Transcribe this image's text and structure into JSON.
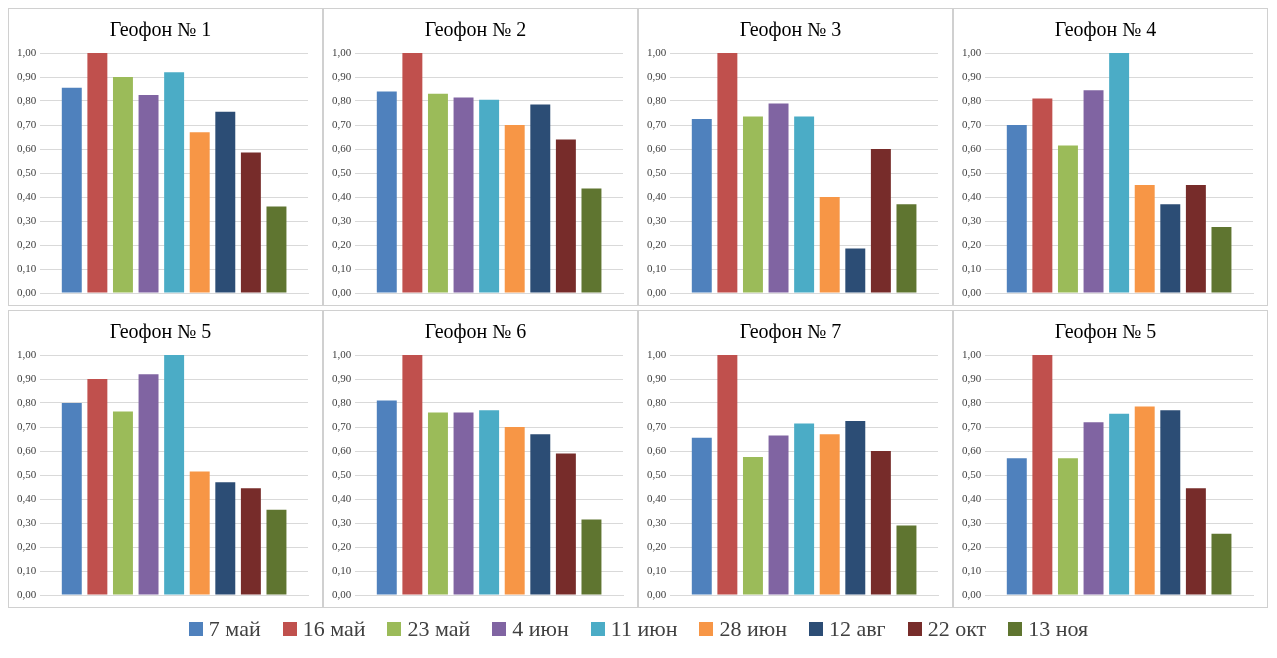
{
  "chart_data": [
    {
      "type": "bar",
      "title": "Геофон № 1",
      "categories": [
        null
      ],
      "ylim": [
        0,
        1
      ],
      "yticks": [
        {
          "value": 0,
          "label": "0,00"
        },
        {
          "value": 0.1,
          "label": "0,10"
        },
        {
          "value": 0.2,
          "label": "0,20"
        },
        {
          "value": 0.3,
          "label": "0,30"
        },
        {
          "value": 0.4,
          "label": "0,40"
        },
        {
          "value": 0.5,
          "label": "0,50"
        },
        {
          "value": 0.6,
          "label": "0,60"
        },
        {
          "value": 0.7,
          "label": "0,70"
        },
        {
          "value": 0.8,
          "label": "0,80"
        },
        {
          "value": 0.9,
          "label": "0,90"
        },
        {
          "value": 1,
          "label": "1,00"
        }
      ],
      "grid": "y",
      "legend": "bottom",
      "series": [
        {
          "name": "7 май",
          "color": "#4f81bd",
          "values": [
            0.855
          ]
        },
        {
          "name": "16 май",
          "color": "#c0504d",
          "values": [
            1.0
          ]
        },
        {
          "name": "23 май",
          "color": "#9bbb59",
          "values": [
            0.9
          ]
        },
        {
          "name": "4 июн",
          "color": "#8064a2",
          "values": [
            0.825
          ]
        },
        {
          "name": "11 июн",
          "color": "#4bacc6",
          "values": [
            0.92
          ]
        },
        {
          "name": "28 июн",
          "color": "#f79646",
          "values": [
            0.67
          ]
        },
        {
          "name": "12 авг",
          "color": "#2c4d75",
          "values": [
            0.755
          ]
        },
        {
          "name": "22 окт",
          "color": "#772c2a",
          "values": [
            0.585
          ]
        },
        {
          "name": "13 ноя",
          "color": "#5f7530",
          "values": [
            0.36
          ]
        }
      ]
    },
    {
      "type": "bar",
      "title": "Геофон № 2",
      "categories": [
        null
      ],
      "ylim": [
        0,
        1
      ],
      "yticks": [
        {
          "value": 0,
          "label": "0,00"
        },
        {
          "value": 0.1,
          "label": "0,10"
        },
        {
          "value": 0.2,
          "label": "0,20"
        },
        {
          "value": 0.3,
          "label": "0,30"
        },
        {
          "value": 0.4,
          "label": "0,40"
        },
        {
          "value": 0.5,
          "label": "0,50"
        },
        {
          "value": 0.6,
          "label": "0,60"
        },
        {
          "value": 0.7,
          "label": "0,70"
        },
        {
          "value": 0.8,
          "label": "0,80"
        },
        {
          "value": 0.9,
          "label": "0,90"
        },
        {
          "value": 1,
          "label": "1,00"
        }
      ],
      "grid": "y",
      "series": [
        {
          "color": "#4f81bd",
          "values": [
            0.84
          ]
        },
        {
          "color": "#c0504d",
          "values": [
            1.0
          ]
        },
        {
          "color": "#9bbb59",
          "values": [
            0.83
          ]
        },
        {
          "color": "#8064a2",
          "values": [
            0.815
          ]
        },
        {
          "color": "#4bacc6",
          "values": [
            0.805
          ]
        },
        {
          "color": "#f79646",
          "values": [
            0.7
          ]
        },
        {
          "color": "#2c4d75",
          "values": [
            0.785
          ]
        },
        {
          "color": "#772c2a",
          "values": [
            0.64
          ]
        },
        {
          "color": "#5f7530",
          "values": [
            0.435
          ]
        }
      ]
    },
    {
      "type": "bar",
      "title": "Геофон № 3",
      "categories": [
        null
      ],
      "ylim": [
        0,
        1
      ],
      "yticks": [
        {
          "value": 0,
          "label": "0,00"
        },
        {
          "value": 0.1,
          "label": "0,10"
        },
        {
          "value": 0.2,
          "label": "0,20"
        },
        {
          "value": 0.3,
          "label": "0,30"
        },
        {
          "value": 0.4,
          "label": "0,40"
        },
        {
          "value": 0.5,
          "label": "0,50"
        },
        {
          "value": 0.6,
          "label": "0,60"
        },
        {
          "value": 0.7,
          "label": "0,70"
        },
        {
          "value": 0.8,
          "label": "0,80"
        },
        {
          "value": 0.9,
          "label": "0,90"
        },
        {
          "value": 1,
          "label": "1,00"
        }
      ],
      "grid": "y",
      "series": [
        {
          "color": "#4f81bd",
          "values": [
            0.725
          ]
        },
        {
          "color": "#c0504d",
          "values": [
            1.0
          ]
        },
        {
          "color": "#9bbb59",
          "values": [
            0.735
          ]
        },
        {
          "color": "#8064a2",
          "values": [
            0.79
          ]
        },
        {
          "color": "#4bacc6",
          "values": [
            0.735
          ]
        },
        {
          "color": "#f79646",
          "values": [
            0.4
          ]
        },
        {
          "color": "#2c4d75",
          "values": [
            0.185
          ]
        },
        {
          "color": "#772c2a",
          "values": [
            0.6
          ]
        },
        {
          "color": "#5f7530",
          "values": [
            0.37
          ]
        }
      ]
    },
    {
      "type": "bar",
      "title": "Геофон № 4",
      "categories": [
        null
      ],
      "ylim": [
        0,
        1
      ],
      "yticks": [
        {
          "value": 0,
          "label": "0,00"
        },
        {
          "value": 0.1,
          "label": "0,10"
        },
        {
          "value": 0.2,
          "label": "0,20"
        },
        {
          "value": 0.3,
          "label": "0,30"
        },
        {
          "value": 0.4,
          "label": "0,40"
        },
        {
          "value": 0.5,
          "label": "0,50"
        },
        {
          "value": 0.6,
          "label": "0,60"
        },
        {
          "value": 0.7,
          "label": "0,70"
        },
        {
          "value": 0.8,
          "label": "0,80"
        },
        {
          "value": 0.9,
          "label": "0,90"
        },
        {
          "value": 1,
          "label": "1,00"
        }
      ],
      "grid": "y",
      "series": [
        {
          "color": "#4f81bd",
          "values": [
            0.7
          ]
        },
        {
          "color": "#c0504d",
          "values": [
            0.81
          ]
        },
        {
          "color": "#9bbb59",
          "values": [
            0.615
          ]
        },
        {
          "color": "#8064a2",
          "values": [
            0.845
          ]
        },
        {
          "color": "#4bacc6",
          "values": [
            1.0
          ]
        },
        {
          "color": "#f79646",
          "values": [
            0.45
          ]
        },
        {
          "color": "#2c4d75",
          "values": [
            0.37
          ]
        },
        {
          "color": "#772c2a",
          "values": [
            0.45
          ]
        },
        {
          "color": "#5f7530",
          "values": [
            0.275
          ]
        }
      ]
    },
    {
      "type": "bar",
      "title": "Геофон № 5",
      "categories": [
        null
      ],
      "ylim": [
        0,
        1
      ],
      "yticks": [
        {
          "value": 0,
          "label": "0,00"
        },
        {
          "value": 0.1,
          "label": "0,10"
        },
        {
          "value": 0.2,
          "label": "0,20"
        },
        {
          "value": 0.3,
          "label": "0,30"
        },
        {
          "value": 0.4,
          "label": "0,40"
        },
        {
          "value": 0.5,
          "label": "0,50"
        },
        {
          "value": 0.6,
          "label": "0,60"
        },
        {
          "value": 0.7,
          "label": "0,70"
        },
        {
          "value": 0.8,
          "label": "0,80"
        },
        {
          "value": 0.9,
          "label": "0,90"
        },
        {
          "value": 1,
          "label": "1,00"
        }
      ],
      "grid": "y",
      "series": [
        {
          "color": "#4f81bd",
          "values": [
            0.8
          ]
        },
        {
          "color": "#c0504d",
          "values": [
            0.9
          ]
        },
        {
          "color": "#9bbb59",
          "values": [
            0.765
          ]
        },
        {
          "color": "#8064a2",
          "values": [
            0.92
          ]
        },
        {
          "color": "#4bacc6",
          "values": [
            1.0
          ]
        },
        {
          "color": "#f79646",
          "values": [
            0.515
          ]
        },
        {
          "color": "#2c4d75",
          "values": [
            0.47
          ]
        },
        {
          "color": "#772c2a",
          "values": [
            0.445
          ]
        },
        {
          "color": "#5f7530",
          "values": [
            0.355
          ]
        }
      ]
    },
    {
      "type": "bar",
      "title": "Геофон № 6",
      "categories": [
        null
      ],
      "ylim": [
        0,
        1
      ],
      "yticks": [
        {
          "value": 0,
          "label": "0,00"
        },
        {
          "value": 0.1,
          "label": "0,10"
        },
        {
          "value": 0.2,
          "label": "0,20"
        },
        {
          "value": 0.3,
          "label": "0,30"
        },
        {
          "value": 0.4,
          "label": "0,40"
        },
        {
          "value": 0.5,
          "label": "0,50"
        },
        {
          "value": 0.6,
          "label": "0,60"
        },
        {
          "value": 0.7,
          "label": "0,70"
        },
        {
          "value": 0.8,
          "label": "0,80"
        },
        {
          "value": 0.9,
          "label": "0,90"
        },
        {
          "value": 1,
          "label": "1,00"
        }
      ],
      "grid": "y",
      "series": [
        {
          "color": "#4f81bd",
          "values": [
            0.81
          ]
        },
        {
          "color": "#c0504d",
          "values": [
            1.0
          ]
        },
        {
          "color": "#9bbb59",
          "values": [
            0.76
          ]
        },
        {
          "color": "#8064a2",
          "values": [
            0.76
          ]
        },
        {
          "color": "#4bacc6",
          "values": [
            0.77
          ]
        },
        {
          "color": "#f79646",
          "values": [
            0.7
          ]
        },
        {
          "color": "#2c4d75",
          "values": [
            0.67
          ]
        },
        {
          "color": "#772c2a",
          "values": [
            0.59
          ]
        },
        {
          "color": "#5f7530",
          "values": [
            0.315
          ]
        }
      ]
    },
    {
      "type": "bar",
      "title": "Геофон № 7",
      "categories": [
        null
      ],
      "ylim": [
        0,
        1
      ],
      "yticks": [
        {
          "value": 0,
          "label": "0,00"
        },
        {
          "value": 0.1,
          "label": "0,10"
        },
        {
          "value": 0.2,
          "label": "0,20"
        },
        {
          "value": 0.3,
          "label": "0,30"
        },
        {
          "value": 0.4,
          "label": "0,40"
        },
        {
          "value": 0.5,
          "label": "0,50"
        },
        {
          "value": 0.6,
          "label": "0,60"
        },
        {
          "value": 0.7,
          "label": "0,70"
        },
        {
          "value": 0.8,
          "label": "0,80"
        },
        {
          "value": 0.9,
          "label": "0,90"
        },
        {
          "value": 1,
          "label": "1,00"
        }
      ],
      "grid": "y",
      "series": [
        {
          "color": "#4f81bd",
          "values": [
            0.655
          ]
        },
        {
          "color": "#c0504d",
          "values": [
            1.0
          ]
        },
        {
          "color": "#9bbb59",
          "values": [
            0.575
          ]
        },
        {
          "color": "#8064a2",
          "values": [
            0.665
          ]
        },
        {
          "color": "#4bacc6",
          "values": [
            0.715
          ]
        },
        {
          "color": "#f79646",
          "values": [
            0.67
          ]
        },
        {
          "color": "#2c4d75",
          "values": [
            0.725
          ]
        },
        {
          "color": "#772c2a",
          "values": [
            0.6
          ]
        },
        {
          "color": "#5f7530",
          "values": [
            0.29
          ]
        }
      ]
    },
    {
      "type": "bar",
      "title": "Геофон № 5",
      "categories": [
        null
      ],
      "ylim": [
        0,
        1
      ],
      "yticks": [
        {
          "value": 0,
          "label": "0,00"
        },
        {
          "value": 0.1,
          "label": "0,10"
        },
        {
          "value": 0.2,
          "label": "0,20"
        },
        {
          "value": 0.3,
          "label": "0,30"
        },
        {
          "value": 0.4,
          "label": "0,40"
        },
        {
          "value": 0.5,
          "label": "0,50"
        },
        {
          "value": 0.6,
          "label": "0,60"
        },
        {
          "value": 0.7,
          "label": "0,70"
        },
        {
          "value": 0.8,
          "label": "0,80"
        },
        {
          "value": 0.9,
          "label": "0,90"
        },
        {
          "value": 1,
          "label": "1,00"
        }
      ],
      "grid": "y",
      "series": [
        {
          "color": "#4f81bd",
          "values": [
            0.57
          ]
        },
        {
          "color": "#c0504d",
          "values": [
            1.0
          ]
        },
        {
          "color": "#9bbb59",
          "values": [
            0.57
          ]
        },
        {
          "color": "#8064a2",
          "values": [
            0.72
          ]
        },
        {
          "color": "#4bacc6",
          "values": [
            0.755
          ]
        },
        {
          "color": "#f79646",
          "values": [
            0.785
          ]
        },
        {
          "color": "#2c4d75",
          "values": [
            0.77
          ]
        },
        {
          "color": "#772c2a",
          "values": [
            0.445
          ]
        },
        {
          "color": "#5f7530",
          "values": [
            0.255
          ]
        }
      ]
    }
  ]
}
